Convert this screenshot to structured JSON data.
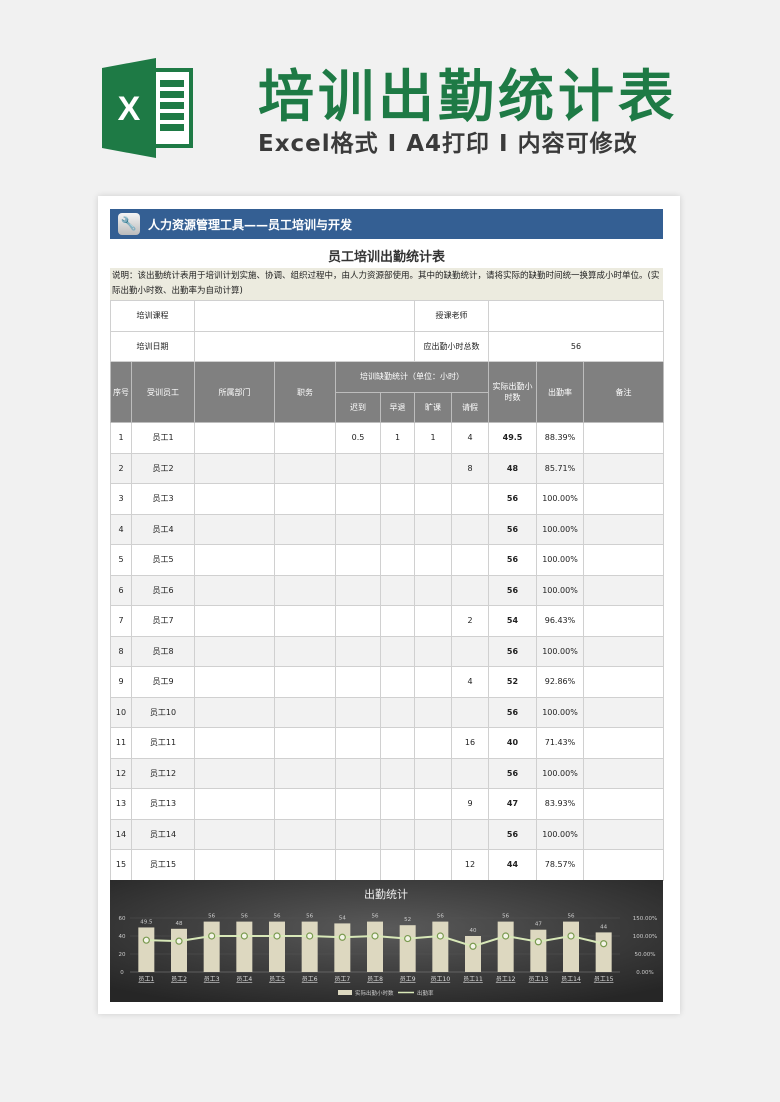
{
  "hero": {
    "title": "培训出勤统计表",
    "subtitle": "Excel格式 I A4打印 I 内容可修改",
    "logo_letter": "X"
  },
  "banner": {
    "icon": "wrench-icon",
    "text": "人力资源管理工具——员工培训与开发"
  },
  "sheet_title": "员工培训出勤统计表",
  "note": "说明：该出勤统计表用于培训计划实施、协调、组织过程中，由人力资源部使用。其中的缺勤统计，请将实际的缺勤时间统一换算成小时单位。(实际出勤小时数、出勤率为自动计算)",
  "info": {
    "course_label": "培训课程",
    "course_value": "",
    "teacher_label": "授课老师",
    "teacher_value": "",
    "date_label": "培训日期",
    "date_value": "",
    "hours_label": "应出勤小时总数",
    "hours_value": "56"
  },
  "headers": {
    "no": "序号",
    "employee": "受训员工",
    "dept": "所属部门",
    "position": "职务",
    "absence_group": "培训缺勤统计（单位：小时）",
    "late": "迟到",
    "early": "早退",
    "truant": "旷课",
    "leave": "请假",
    "actual": "实际出勤小时数",
    "rate": "出勤率",
    "remark": "备注"
  },
  "rows": [
    {
      "no": "1",
      "name": "员工1",
      "late": "0.5",
      "early": "1",
      "truant": "1",
      "leave": "4",
      "actual": "49.5",
      "rate": "88.39%"
    },
    {
      "no": "2",
      "name": "员工2",
      "late": "",
      "early": "",
      "truant": "",
      "leave": "8",
      "actual": "48",
      "rate": "85.71%"
    },
    {
      "no": "3",
      "name": "员工3",
      "late": "",
      "early": "",
      "truant": "",
      "leave": "",
      "actual": "56",
      "rate": "100.00%"
    },
    {
      "no": "4",
      "name": "员工4",
      "late": "",
      "early": "",
      "truant": "",
      "leave": "",
      "actual": "56",
      "rate": "100.00%"
    },
    {
      "no": "5",
      "name": "员工5",
      "late": "",
      "early": "",
      "truant": "",
      "leave": "",
      "actual": "56",
      "rate": "100.00%"
    },
    {
      "no": "6",
      "name": "员工6",
      "late": "",
      "early": "",
      "truant": "",
      "leave": "",
      "actual": "56",
      "rate": "100.00%"
    },
    {
      "no": "7",
      "name": "员工7",
      "late": "",
      "early": "",
      "truant": "",
      "leave": "2",
      "actual": "54",
      "rate": "96.43%"
    },
    {
      "no": "8",
      "name": "员工8",
      "late": "",
      "early": "",
      "truant": "",
      "leave": "",
      "actual": "56",
      "rate": "100.00%"
    },
    {
      "no": "9",
      "name": "员工9",
      "late": "",
      "early": "",
      "truant": "",
      "leave": "4",
      "actual": "52",
      "rate": "92.86%"
    },
    {
      "no": "10",
      "name": "员工10",
      "late": "",
      "early": "",
      "truant": "",
      "leave": "",
      "actual": "56",
      "rate": "100.00%"
    },
    {
      "no": "11",
      "name": "员工11",
      "late": "",
      "early": "",
      "truant": "",
      "leave": "16",
      "actual": "40",
      "rate": "71.43%"
    },
    {
      "no": "12",
      "name": "员工12",
      "late": "",
      "early": "",
      "truant": "",
      "leave": "",
      "actual": "56",
      "rate": "100.00%"
    },
    {
      "no": "13",
      "name": "员工13",
      "late": "",
      "early": "",
      "truant": "",
      "leave": "9",
      "actual": "47",
      "rate": "83.93%"
    },
    {
      "no": "14",
      "name": "员工14",
      "late": "",
      "early": "",
      "truant": "",
      "leave": "",
      "actual": "56",
      "rate": "100.00%"
    },
    {
      "no": "15",
      "name": "员工15",
      "late": "",
      "early": "",
      "truant": "",
      "leave": "12",
      "actual": "44",
      "rate": "78.57%"
    }
  ],
  "chart_data": {
    "type": "bar+line",
    "title": "出勤统计",
    "categories": [
      "员工1",
      "员工2",
      "员工3",
      "员工4",
      "员工5",
      "员工6",
      "员工7",
      "员工8",
      "员工9",
      "员工10",
      "员工11",
      "员工12",
      "员工13",
      "员工14",
      "员工15"
    ],
    "series": [
      {
        "name": "实际出勤小时数",
        "type": "bar",
        "axis": "left",
        "values": [
          49.5,
          48,
          56,
          56,
          56,
          56,
          54,
          56,
          52,
          56,
          40,
          56,
          47,
          56,
          44
        ]
      },
      {
        "name": "出勤率",
        "type": "line",
        "axis": "right",
        "values": [
          88.39,
          85.71,
          100,
          100,
          100,
          100,
          96.43,
          100,
          92.86,
          100,
          71.43,
          100,
          83.93,
          100,
          78.57
        ]
      }
    ],
    "ylim_left": [
      0,
      60
    ],
    "yticks_left": [
      "0",
      "20",
      "40",
      "60"
    ],
    "ylim_right": [
      0,
      150
    ],
    "yticks_right": [
      "0.00%",
      "50.00%",
      "100.00%",
      "150.00%"
    ],
    "legend": "bottom",
    "grid": true,
    "colors": {
      "bar": "#ddd8c0",
      "line": "#d8e8b8",
      "marker": "#7a9a50",
      "background": "#3a3a3a"
    }
  }
}
